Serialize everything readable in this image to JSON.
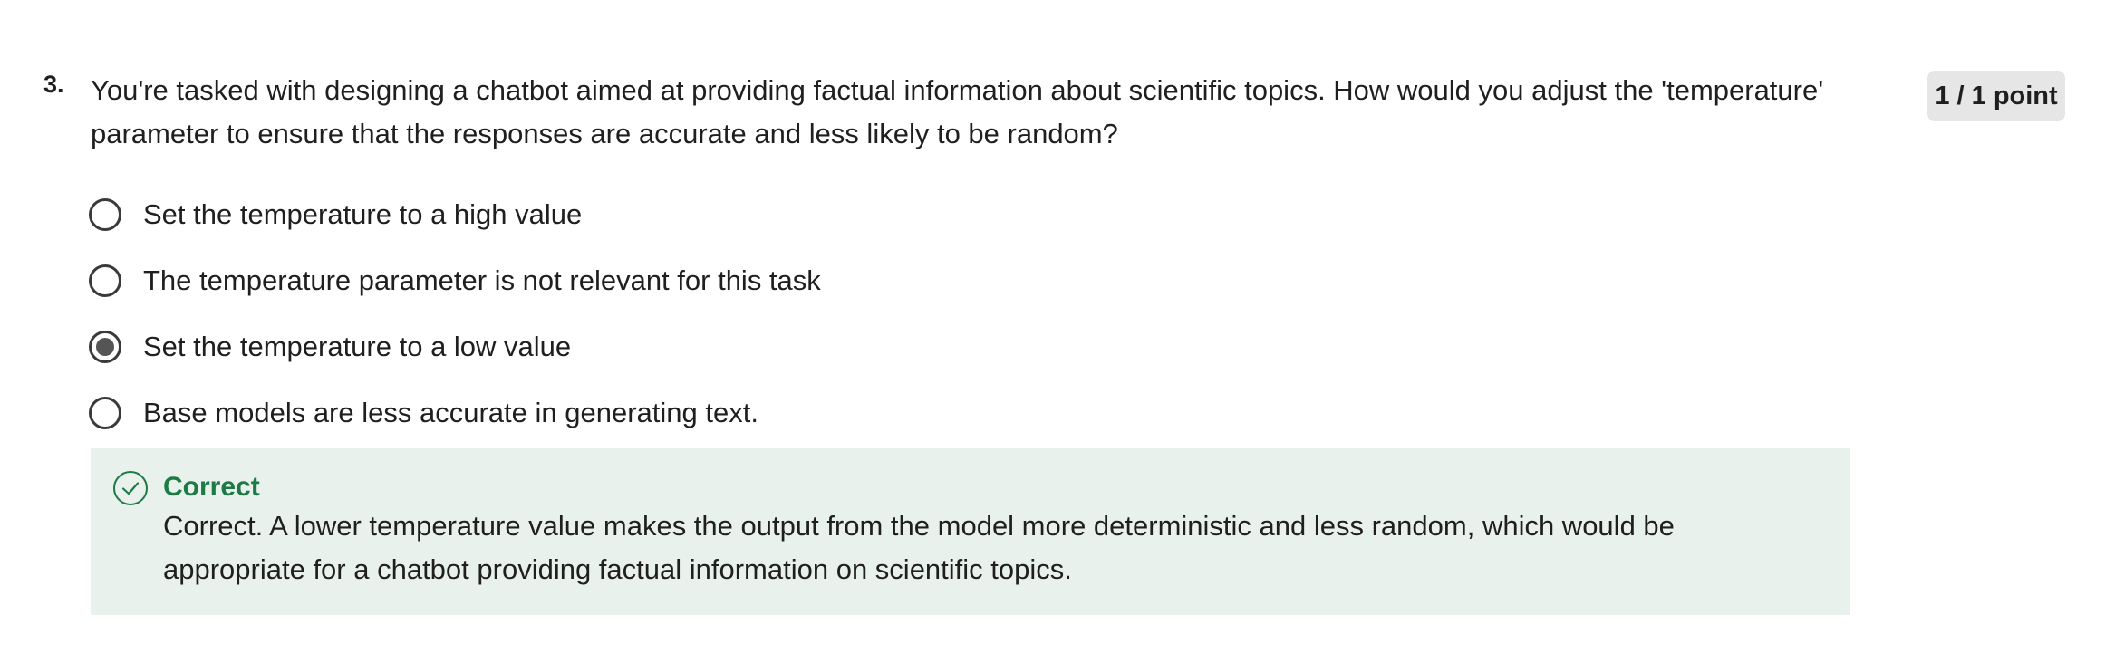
{
  "question": {
    "number": "3.",
    "text": "You're tasked with designing a chatbot aimed at providing factual information about scientific topics. How would you adjust the 'temperature' parameter to ensure that the responses are accurate and less likely to be random?",
    "score": "1 / 1 point"
  },
  "options": [
    {
      "label": "Set the temperature to a high value",
      "selected": false
    },
    {
      "label": "The temperature parameter is not relevant for this task",
      "selected": false
    },
    {
      "label": "Set the temperature to a low value",
      "selected": true
    },
    {
      "label": "Base models are less accurate in generating text.",
      "selected": false
    }
  ],
  "feedback": {
    "icon": "check-circle-icon",
    "status": "Correct",
    "explanation": "Correct. A lower temperature value makes the output from the model more deterministic and less random, which would be appropriate for a chatbot providing factual information on scientific topics.",
    "color": "#1e7a45",
    "background": "#e8f1ec"
  }
}
